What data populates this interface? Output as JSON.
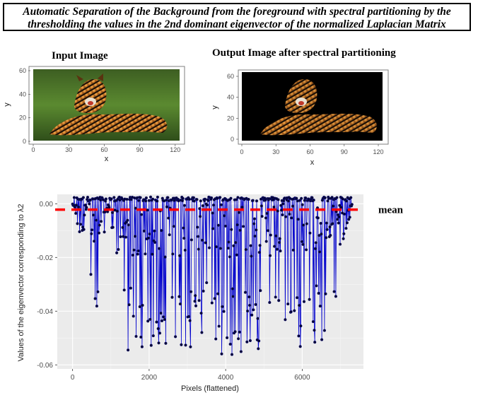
{
  "banner": {
    "line1": "Automatic Separation of the Background from the foreground with spectral partitioning by the",
    "line2": "thresholding the values in the 2nd dominant eigenvector of the normalized Laplacian Matrix"
  },
  "panels": {
    "input_title": "Input Image",
    "output_title": "Output Image after spectral partitioning"
  },
  "colors": {
    "panel_bg": "#ebebeb",
    "grid": "#ffffff",
    "series": "#0000cc",
    "points": "#000033",
    "mean_line": "#ff0000"
  },
  "chart_data": [
    {
      "type": "image",
      "title": "Input Image",
      "xlabel": "x",
      "ylabel": "y",
      "xticks": [
        "0",
        "30",
        "60",
        "90",
        "120"
      ],
      "yticks": [
        "0",
        "20",
        "40",
        "60"
      ]
    },
    {
      "type": "image",
      "title": "Output Image after spectral partitioning",
      "xlabel": "x",
      "ylabel": "y",
      "xticks": [
        "0",
        "30",
        "60",
        "90",
        "120"
      ],
      "yticks": [
        "0",
        "20",
        "40",
        "60"
      ]
    },
    {
      "type": "line",
      "xlabel": "Pixels (flattened)",
      "ylabel": "Values of the eigenvector corresponding to λ2",
      "xlim": [
        -400,
        7600
      ],
      "ylim": [
        -0.0615,
        0.0035
      ],
      "xticks": [
        0,
        2000,
        4000,
        6000
      ],
      "yticks": [
        0.0,
        -0.02,
        -0.04,
        -0.06
      ],
      "ytick_labels": [
        "0.00",
        "-0.02",
        "-0.04",
        "-0.06"
      ],
      "grid": true,
      "markers": true,
      "n_points": 7300,
      "mean": -0.0022,
      "mean_label": "mean",
      "envelope": [
        {
          "x": 0,
          "min": -0.001
        },
        {
          "x": 200,
          "min": -0.012
        },
        {
          "x": 400,
          "min": -0.016
        },
        {
          "x": 500,
          "min": -0.0395
        },
        {
          "x": 650,
          "min": -0.045
        },
        {
          "x": 800,
          "min": -0.011
        },
        {
          "x": 1000,
          "min": -0.008
        },
        {
          "x": 1200,
          "min": -0.025
        },
        {
          "x": 1350,
          "min": -0.057
        },
        {
          "x": 1600,
          "min": -0.055
        },
        {
          "x": 1900,
          "min": -0.059
        },
        {
          "x": 2200,
          "min": -0.057
        },
        {
          "x": 2500,
          "min": -0.058
        },
        {
          "x": 2800,
          "min": -0.059
        },
        {
          "x": 3000,
          "min": -0.055
        },
        {
          "x": 3300,
          "min": -0.052
        },
        {
          "x": 3600,
          "min": -0.053
        },
        {
          "x": 4000,
          "min": -0.057
        },
        {
          "x": 4300,
          "min": -0.057
        },
        {
          "x": 4800,
          "min": -0.058
        },
        {
          "x": 5200,
          "min": -0.059
        },
        {
          "x": 5500,
          "min": -0.056
        },
        {
          "x": 6000,
          "min": -0.054
        },
        {
          "x": 6300,
          "min": -0.052
        },
        {
          "x": 6600,
          "min": -0.057
        },
        {
          "x": 6800,
          "min": -0.048
        },
        {
          "x": 7000,
          "min": -0.02
        },
        {
          "x": 7300,
          "min": -0.003
        }
      ]
    }
  ]
}
